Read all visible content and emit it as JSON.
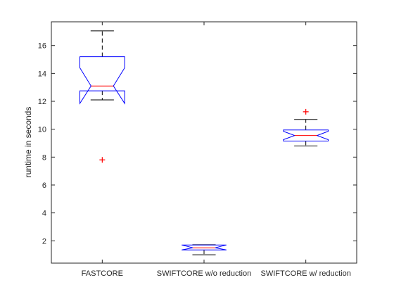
{
  "chart_data": {
    "type": "box",
    "title": "",
    "xlabel": "",
    "ylabel": "runtime in seconds",
    "ylim": [
      0.4,
      17.7
    ],
    "yticks": [
      2,
      4,
      6,
      8,
      10,
      12,
      14,
      16
    ],
    "notched": true,
    "colors": {
      "box": "#0000ff",
      "median": "#ff0000",
      "whisker": "#000000",
      "outlier": "#ff0000",
      "axis": "#262626",
      "background": "#ffffff"
    },
    "groups": [
      {
        "label": "FASTCORE",
        "whisker_low": 12.1,
        "q1": 12.75,
        "median": 13.1,
        "q3": 15.2,
        "whisker_high": 17.05,
        "notch_low": 11.85,
        "notch_high": 14.4,
        "outliers": [
          7.8
        ]
      },
      {
        "label": "SWIFTCORE w/o reduction",
        "whisker_low": 1.0,
        "q1": 1.35,
        "median": 1.5,
        "q3": 1.7,
        "whisker_high": 1.72,
        "notch_low": 1.35,
        "notch_high": 1.7,
        "outliers": []
      },
      {
        "label": "SWIFTCORE w/ reduction",
        "whisker_low": 8.8,
        "q1": 9.15,
        "median": 9.55,
        "q3": 9.95,
        "whisker_high": 10.7,
        "notch_low": 9.25,
        "notch_high": 9.85,
        "outliers": [
          11.25
        ]
      }
    ]
  }
}
